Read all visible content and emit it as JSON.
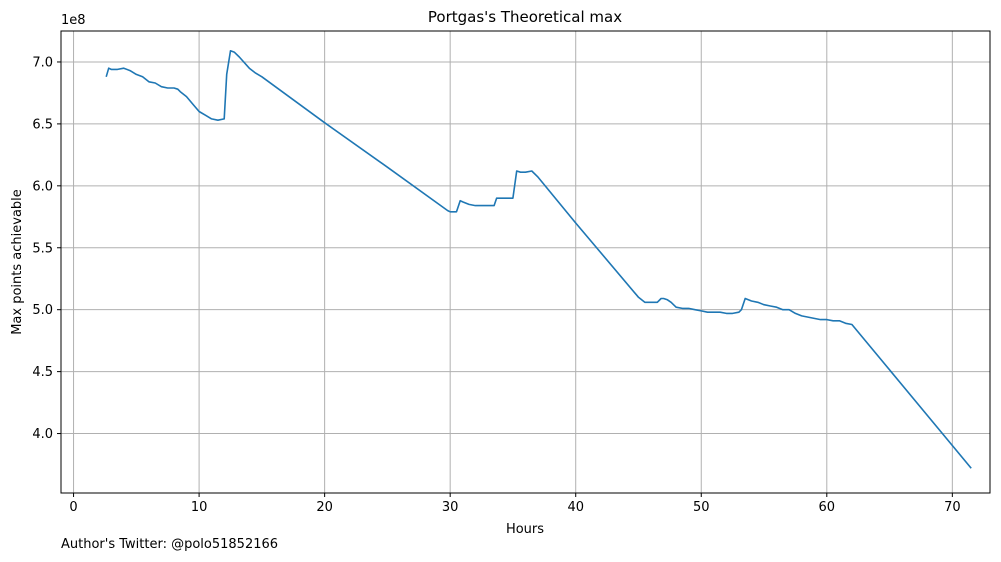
{
  "chart_data": {
    "type": "line",
    "title": "Portgas's Theoretical max",
    "xlabel": "Hours",
    "ylabel": "Max points achievable",
    "y_scale_label": "1e8",
    "xlim": [
      -1,
      73
    ],
    "ylim": [
      3.52,
      7.25
    ],
    "x_ticks": [
      0,
      10,
      20,
      30,
      40,
      50,
      60,
      70
    ],
    "x_tick_labels": [
      "0",
      "10",
      "20",
      "30",
      "40",
      "50",
      "60",
      "70"
    ],
    "y_ticks": [
      4.0,
      4.5,
      5.0,
      5.5,
      6.0,
      6.5,
      7.0
    ],
    "y_tick_labels": [
      "4.0",
      "4.5",
      "5.0",
      "5.5",
      "6.0",
      "6.5",
      "7.0"
    ],
    "grid": true,
    "line_color": "#1f77b4",
    "series": [
      {
        "x": [
          2.6,
          2.8,
          3.0,
          3.5,
          4.0,
          4.5,
          5.0,
          5.5,
          6.0,
          6.5,
          7.0,
          7.5,
          8.0,
          8.3,
          8.5,
          9.0,
          9.5,
          10.0,
          10.5,
          11.0,
          11.5,
          12.0,
          12.2,
          12.5,
          12.8,
          13.2,
          14.0,
          14.5,
          15.0,
          20.0,
          25.0,
          29.8,
          30.0,
          30.5,
          30.8,
          31.0,
          31.5,
          32.0,
          32.5,
          33.0,
          33.5,
          33.7,
          34.0,
          34.5,
          35.0,
          35.3,
          35.6,
          36.0,
          36.5,
          37.0,
          40.0,
          45.0,
          45.5,
          46.0,
          46.5,
          46.8,
          47.0,
          47.3,
          47.6,
          48.0,
          48.5,
          49.0,
          49.5,
          50.0,
          50.5,
          51.0,
          51.5,
          52.0,
          52.5,
          53.0,
          53.2,
          53.5,
          54.0,
          54.5,
          55.0,
          55.5,
          56.0,
          56.5,
          57.0,
          57.5,
          58.0,
          58.5,
          59.0,
          59.5,
          60.0,
          60.5,
          61.0,
          61.5,
          62.0,
          71.5
        ],
        "values": [
          6.88,
          6.95,
          6.94,
          6.94,
          6.95,
          6.93,
          6.9,
          6.88,
          6.84,
          6.83,
          6.8,
          6.79,
          6.79,
          6.78,
          6.76,
          6.72,
          6.66,
          6.6,
          6.57,
          6.54,
          6.53,
          6.54,
          6.9,
          7.09,
          7.08,
          7.04,
          6.95,
          6.91,
          6.88,
          6.51,
          6.15,
          5.8,
          5.79,
          5.79,
          5.88,
          5.87,
          5.85,
          5.84,
          5.84,
          5.84,
          5.84,
          5.9,
          5.9,
          5.9,
          5.9,
          6.12,
          6.11,
          6.11,
          6.12,
          6.07,
          5.7,
          5.1,
          5.06,
          5.06,
          5.06,
          5.09,
          5.09,
          5.08,
          5.06,
          5.02,
          5.01,
          5.01,
          5.0,
          4.99,
          4.98,
          4.98,
          4.98,
          4.97,
          4.97,
          4.98,
          5.0,
          5.09,
          5.07,
          5.06,
          5.04,
          5.03,
          5.02,
          5.0,
          5.0,
          4.97,
          4.95,
          4.94,
          4.93,
          4.92,
          4.92,
          4.91,
          4.91,
          4.89,
          4.88,
          3.72
        ]
      }
    ]
  },
  "footer": {
    "author_note": "Author's Twitter: @polo51852166"
  }
}
